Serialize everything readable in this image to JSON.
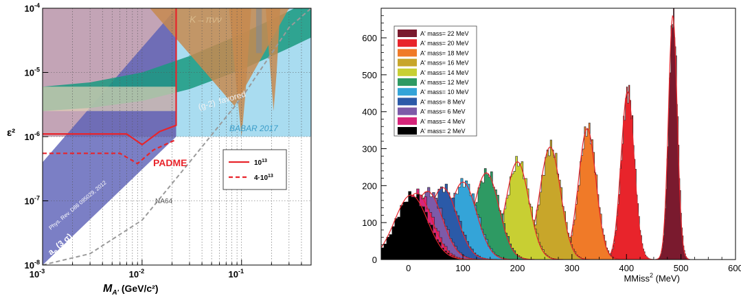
{
  "chart_data": [
    {
      "type": "area",
      "xlabel_main": "M",
      "xlabel_sub": "A'",
      "xlabel_unit": " (GeV/c²)",
      "ylabel": "ε²",
      "xscale": "log",
      "yscale": "log",
      "xlim": [
        0.001,
        0.5
      ],
      "ylim": [
        1e-08,
        0.0001
      ],
      "x_ticks": [
        {
          "v": 0.001,
          "b": "10",
          "e": "-3"
        },
        {
          "v": 0.01,
          "b": "10",
          "e": "-2"
        },
        {
          "v": 0.1,
          "b": "10",
          "e": "-1"
        }
      ],
      "y_ticks": [
        {
          "v": 1e-08,
          "b": "10",
          "e": "-8"
        },
        {
          "v": 1e-07,
          "b": "10",
          "e": "-7"
        },
        {
          "v": 1e-06,
          "b": "10",
          "e": "-6"
        },
        {
          "v": 1e-05,
          "b": "10",
          "e": "-5"
        },
        {
          "v": 0.0001,
          "b": "10",
          "e": "-4"
        }
      ],
      "grid": "dotted",
      "annotations": {
        "kaon": "K→πνν",
        "g2": "(g-2)",
        "g2_word": "favored",
        "babar": "BABAR 2017",
        "padme": "PADME",
        "na64": "NA64",
        "phys_rev": "Phys. Rev. D86 095029, 2012",
        "ae": "a",
        "ae_sub": "e",
        "ae_sigma": " (3 σ)"
      },
      "legend": {
        "position": "right",
        "entries": [
          {
            "label": "10",
            "sup": "13",
            "style": "solid",
            "color": "#e8242b"
          },
          {
            "label": "4·10",
            "sup": "13",
            "style": "dashed",
            "color": "#e8242b"
          }
        ]
      },
      "series": [
        {
          "name": "10",
          "style": "solid",
          "x": [
            0.001,
            0.007,
            0.01,
            0.015,
            0.022,
            0.022
          ],
          "y": [
            1.1e-06,
            1.1e-06,
            7.5e-07,
            1.2e-06,
            1.5e-06,
            0.0001
          ]
        },
        {
          "name": "4·10",
          "style": "dashed",
          "x": [
            0.001,
            0.006,
            0.009,
            0.013,
            0.022
          ],
          "y": [
            5.5e-07,
            5.5e-07,
            3.8e-07,
            6.2e-07,
            9e-07
          ]
        },
        {
          "name": "NA64",
          "style": "dashed",
          "x": [
            0.001,
            0.003,
            0.01,
            0.03,
            0.1,
            0.3,
            0.5
          ],
          "y": [
            1e-08,
            1.5e-08,
            5e-08,
            4e-07,
            4e-06,
            5e-05,
            0.0001
          ]
        }
      ],
      "colors": {
        "babar": "#a9dcf0",
        "g2": "#1a9a80",
        "kaon": "#c7894f",
        "ae": "#5a5fb7",
        "pink": "#c89aac",
        "padme": "#e8242b"
      }
    },
    {
      "type": "bar",
      "xlabel": "MMiss",
      "xlabel_sup": "2",
      "xlabel_unit": " (MeV)",
      "xlim": [
        -50,
        600
      ],
      "ylim": [
        0,
        680
      ],
      "x_ticks": [
        0,
        100,
        200,
        300,
        400,
        500,
        600
      ],
      "y_ticks": [
        0,
        100,
        200,
        300,
        400,
        500,
        600
      ],
      "legend": {
        "position": "top-left",
        "prefix": "A' mass= ",
        "suffix": " MeV"
      },
      "series": [
        {
          "name": "22",
          "color": "#7a1a2e",
          "mean": 485,
          "sigma": 8,
          "peak": 660
        },
        {
          "name": "20",
          "color": "#e8242b",
          "mean": 402,
          "sigma": 12,
          "peak": 455
        },
        {
          "name": "18",
          "color": "#f07a28",
          "mean": 328,
          "sigma": 16,
          "peak": 355
        },
        {
          "name": "16",
          "color": "#c8a62a",
          "mean": 260,
          "sigma": 19,
          "peak": 305
        },
        {
          "name": "14",
          "color": "#c8cf33",
          "mean": 200,
          "sigma": 21,
          "peak": 265
        },
        {
          "name": "12",
          "color": "#2e9a63",
          "mean": 143,
          "sigma": 23,
          "peak": 235
        },
        {
          "name": "10",
          "color": "#34a4d8",
          "mean": 100,
          "sigma": 25,
          "peak": 210
        },
        {
          "name": "8",
          "color": "#2b5aa8",
          "mean": 63,
          "sigma": 26,
          "peak": 195
        },
        {
          "name": "6",
          "color": "#7d5aa8",
          "mean": 35,
          "sigma": 27,
          "peak": 185
        },
        {
          "name": "4",
          "color": "#d6257a",
          "mean": 15,
          "sigma": 28,
          "peak": 180
        },
        {
          "name": "2",
          "color": "#000000",
          "mean": 5,
          "sigma": 30,
          "peak": 175
        }
      ]
    }
  ]
}
